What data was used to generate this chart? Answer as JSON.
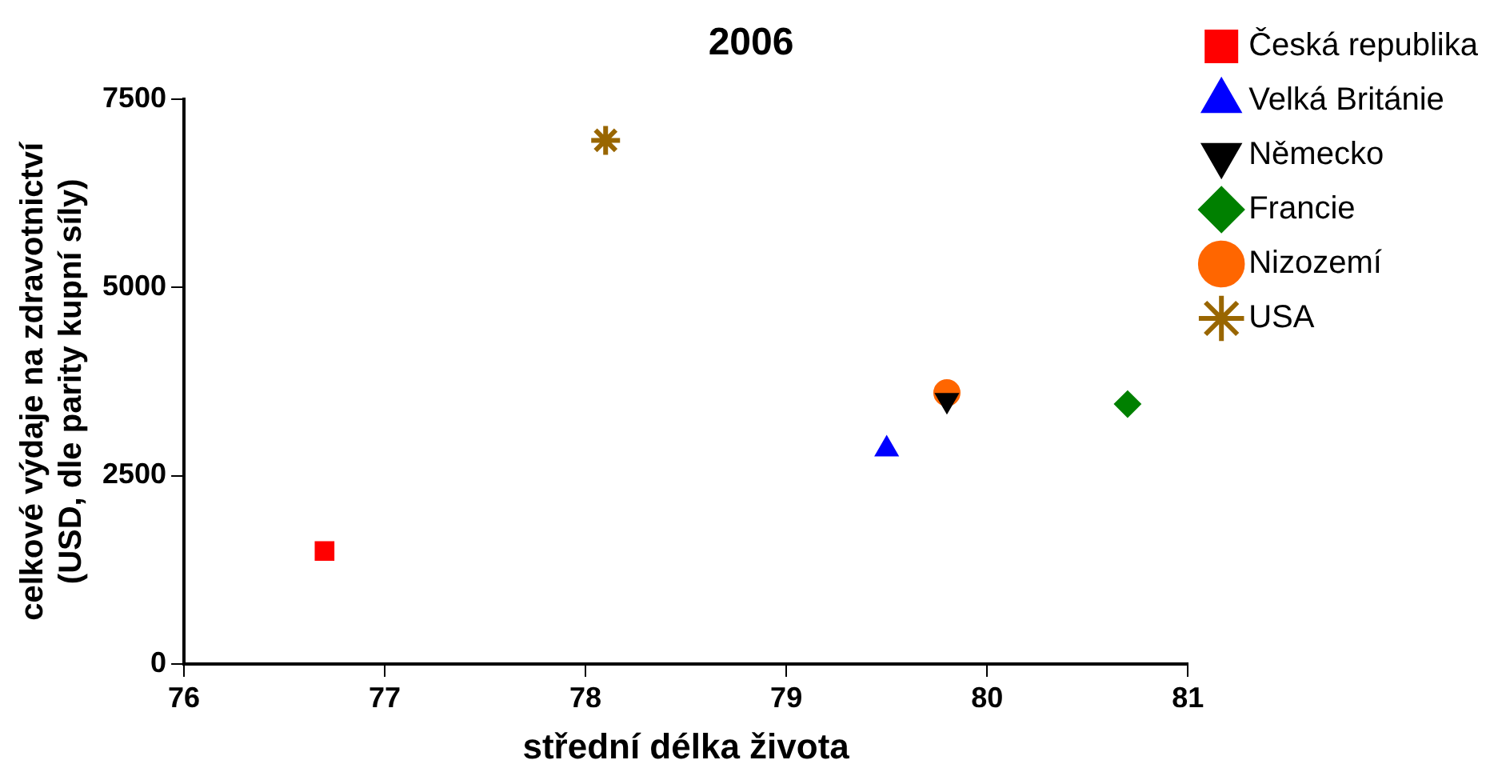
{
  "chart_data": {
    "type": "scatter",
    "title": "2006",
    "xlabel": "střední délka života",
    "ylabel": "celkové výdaje na zdravotnictví\n(USD, dle parity kupní síly)",
    "xlim": [
      76,
      81
    ],
    "xticks": [
      76,
      77,
      78,
      79,
      80,
      81
    ],
    "ylim": [
      0,
      7500
    ],
    "yticks": [
      0,
      2500,
      5000,
      7500
    ],
    "grid": false,
    "legend": "right",
    "series": [
      {
        "name": "Česká republika",
        "color": "#ff0000",
        "marker": "square",
        "x": [
          76.7
        ],
        "values": [
          1500
        ]
      },
      {
        "name": "Velká Británie",
        "color": "#0000ff",
        "marker": "triangle",
        "x": [
          79.5
        ],
        "values": [
          2850
        ]
      },
      {
        "name": "Německo",
        "color": "#000000",
        "marker": "triangle-down",
        "x": [
          79.8
        ],
        "values": [
          3500
        ]
      },
      {
        "name": "Francie",
        "color": "#008000",
        "marker": "diamond",
        "x": [
          80.7
        ],
        "values": [
          3450
        ]
      },
      {
        "name": "Nizozemí",
        "color": "#ff6600",
        "marker": "circle",
        "x": [
          79.8
        ],
        "values": [
          3600
        ]
      },
      {
        "name": "USA",
        "color": "#996600",
        "marker": "cross",
        "x": [
          78.1
        ],
        "values": [
          6950
        ]
      }
    ]
  }
}
